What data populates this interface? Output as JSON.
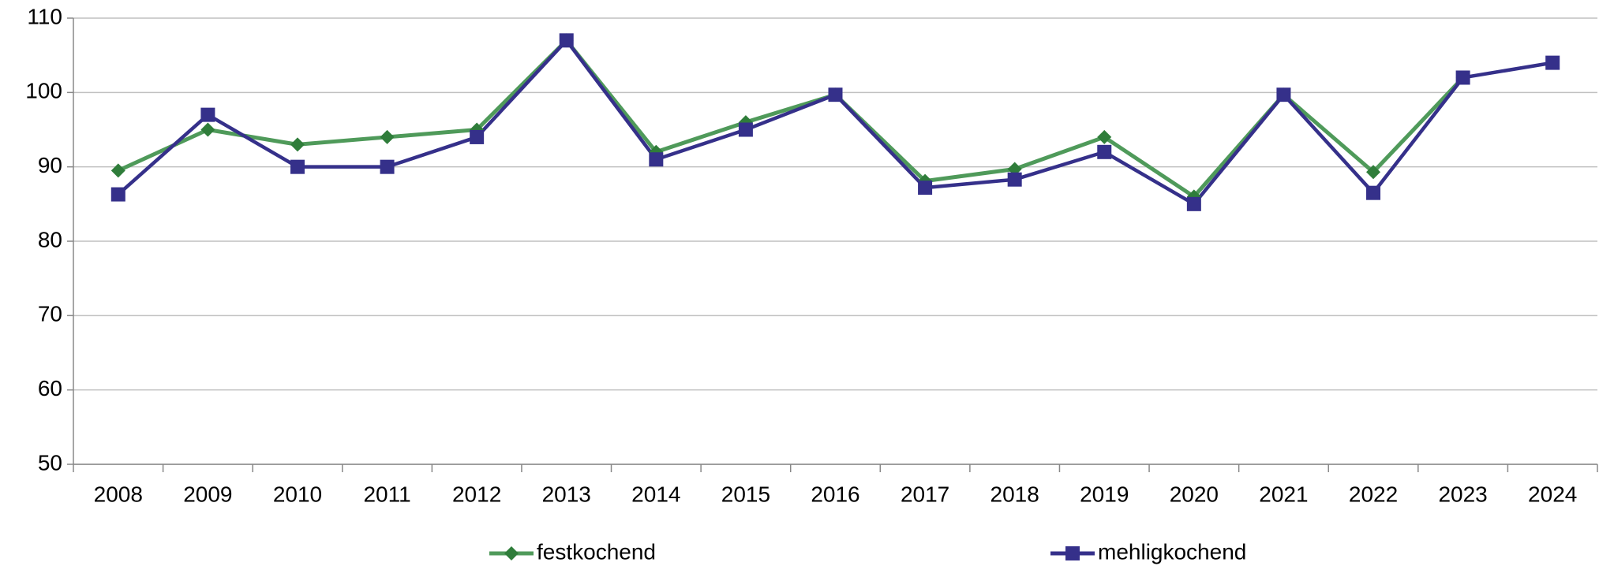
{
  "chart_data": {
    "type": "line",
    "categories": [
      "2008",
      "2009",
      "2010",
      "2011",
      "2012",
      "2013",
      "2014",
      "2015",
      "2016",
      "2017",
      "2018",
      "2019",
      "2020",
      "2021",
      "2022",
      "2023",
      "2024"
    ],
    "series": [
      {
        "name": "festkochend",
        "color": "#4f9a5a",
        "marker": "diamond",
        "marker_color": "#2f7d3a",
        "values": [
          89.5,
          95,
          93,
          94,
          95,
          107,
          92,
          96,
          99.7,
          88.1,
          89.7,
          94,
          86,
          99.7,
          89.3,
          102,
          null
        ]
      },
      {
        "name": "mehligkochend",
        "color": "#35308a",
        "marker": "square",
        "marker_color": "#35308a",
        "values": [
          86.3,
          97,
          90,
          90,
          94,
          107,
          91,
          95,
          99.7,
          87.2,
          88.3,
          92,
          85,
          99.7,
          86.5,
          102,
          104
        ]
      }
    ],
    "ylim": [
      50,
      110
    ],
    "yticks": [
      50,
      60,
      70,
      80,
      90,
      100,
      110
    ],
    "grid": true,
    "legend": "bottom"
  }
}
